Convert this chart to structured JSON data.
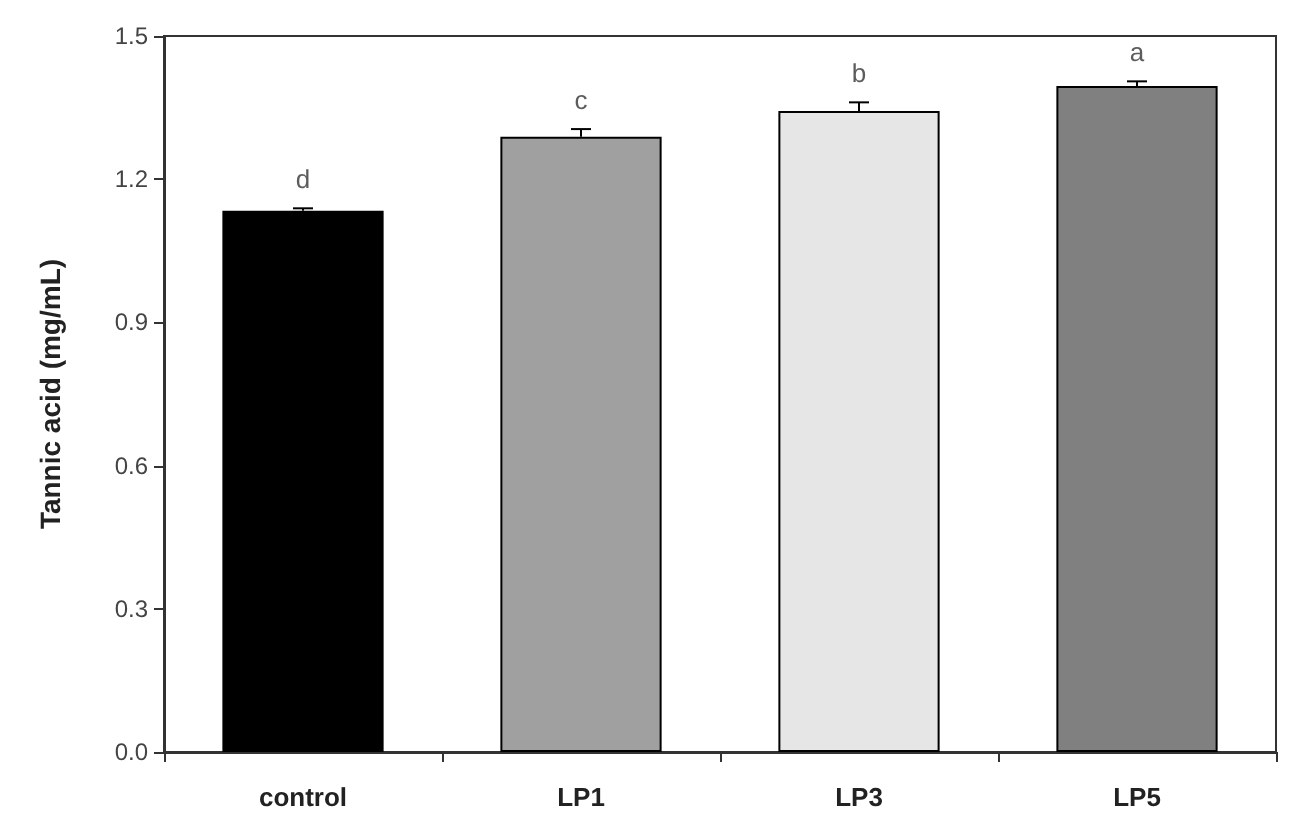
{
  "chart_data": {
    "type": "bar",
    "ylabel": "Tannic acid (mg/mL)",
    "categories": [
      "control",
      "LP1",
      "LP3",
      "LP5"
    ],
    "values": [
      1.134,
      1.289,
      1.343,
      1.395
    ],
    "colors": [
      "#000000",
      "#a0a0a0",
      "#e6e6e6",
      "#808080"
    ],
    "errors": [
      [
        1.134,
        1.139
      ],
      [
        1.289,
        1.305
      ],
      [
        1.343,
        1.361
      ],
      [
        1.395,
        1.405
      ]
    ],
    "annotations": [
      {
        "text": "d",
        "x": "control",
        "y": 1.139
      },
      {
        "text": "c",
        "x": "LP1",
        "y": 1.305
      },
      {
        "text": "b",
        "x": "LP3",
        "y": 1.361
      },
      {
        "text": "a",
        "x": "LP5",
        "y": 1.405
      }
    ],
    "ylim": [
      0,
      1.5
    ],
    "yticks": [
      {
        "value": 0,
        "label": "0.0"
      },
      0.3,
      0.6,
      0.9,
      1.2,
      1.5
    ],
    "grid": false
  }
}
